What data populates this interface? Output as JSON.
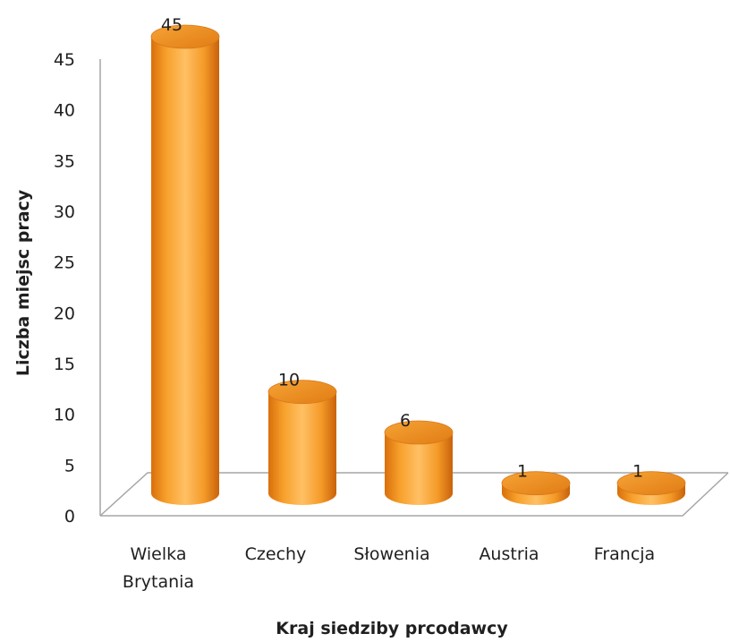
{
  "chart_data": {
    "type": "bar",
    "title": "",
    "xlabel": "Kraj siedziby prcodawcy",
    "ylabel": "Liczba miejsc pracy",
    "categories": [
      [
        "Wielka",
        "Brytania"
      ],
      [
        "Czechy"
      ],
      [
        "Słowenia"
      ],
      [
        "Austria"
      ],
      [
        "Francja"
      ]
    ],
    "values": [
      45,
      10,
      6,
      1,
      1
    ],
    "ylim": [
      0,
      45
    ],
    "yticks": [
      0,
      5,
      10,
      15,
      20,
      25,
      30,
      35,
      40,
      45
    ],
    "grid": false,
    "legend": "none",
    "bar_color": "#f39a25",
    "axis_color": "#a6a6a6"
  }
}
